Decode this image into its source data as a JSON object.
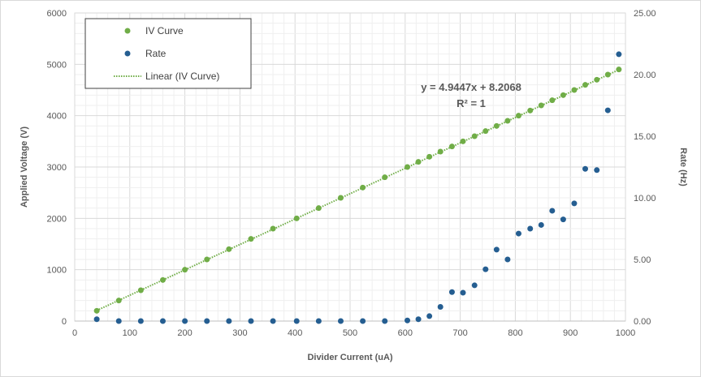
{
  "chart_data": {
    "type": "scatter",
    "title": "",
    "xlabel": "Divider Current (uA)",
    "ylabel_left": "Applied Voltage (V)",
    "ylabel_right": "Rate (Hz)",
    "xlim": [
      0,
      1000
    ],
    "ylim_left": [
      0,
      6000
    ],
    "ylim_right": [
      0,
      25
    ],
    "x_ticks": [
      "0",
      "100",
      "200",
      "300",
      "400",
      "500",
      "600",
      "700",
      "800",
      "900",
      "1000"
    ],
    "y_left_ticks": [
      "0",
      "1000",
      "2000",
      "3000",
      "4000",
      "5000",
      "6000"
    ],
    "y_right_ticks": [
      "0.00",
      "5.00",
      "10.00",
      "15.00",
      "20.00",
      "25.00"
    ],
    "grid": true,
    "legend_position": "top-left",
    "series": [
      {
        "name": "IV Curve",
        "axis": "left",
        "color": "#70ad47",
        "points": [
          [
            40,
            200
          ],
          [
            80,
            400
          ],
          [
            120,
            600
          ],
          [
            160,
            800
          ],
          [
            200,
            1000
          ],
          [
            240,
            1200
          ],
          [
            280,
            1400
          ],
          [
            320,
            1600
          ],
          [
            360,
            1800
          ],
          [
            403,
            2000
          ],
          [
            443,
            2200
          ],
          [
            483,
            2400
          ],
          [
            523,
            2600
          ],
          [
            563,
            2800
          ],
          [
            604,
            3000
          ],
          [
            624,
            3100
          ],
          [
            644,
            3200
          ],
          [
            664,
            3300
          ],
          [
            685,
            3400
          ],
          [
            705,
            3500
          ],
          [
            726,
            3600
          ],
          [
            746,
            3700
          ],
          [
            766,
            3800
          ],
          [
            786,
            3900
          ],
          [
            806,
            4000
          ],
          [
            827,
            4100
          ],
          [
            847,
            4200
          ],
          [
            867,
            4300
          ],
          [
            887,
            4400
          ],
          [
            907,
            4500
          ],
          [
            927,
            4600
          ],
          [
            948,
            4700
          ],
          [
            968,
            4800
          ],
          [
            988,
            4900
          ]
        ]
      },
      {
        "name": "Rate",
        "axis": "right",
        "color": "#255e91",
        "points": [
          [
            40,
            0.15
          ],
          [
            80,
            0
          ],
          [
            120,
            0
          ],
          [
            160,
            0
          ],
          [
            200,
            0
          ],
          [
            240,
            0
          ],
          [
            280,
            0
          ],
          [
            320,
            0
          ],
          [
            360,
            0
          ],
          [
            403,
            0
          ],
          [
            443,
            0
          ],
          [
            483,
            0
          ],
          [
            523,
            0
          ],
          [
            563,
            0
          ],
          [
            604,
            0.05
          ],
          [
            624,
            0.15
          ],
          [
            644,
            0.4
          ],
          [
            664,
            1.15
          ],
          [
            685,
            2.35
          ],
          [
            705,
            2.3
          ],
          [
            726,
            2.9
          ],
          [
            746,
            4.2
          ],
          [
            766,
            5.8
          ],
          [
            786,
            5.0
          ],
          [
            806,
            7.1
          ],
          [
            827,
            7.5
          ],
          [
            847,
            7.8
          ],
          [
            867,
            8.95
          ],
          [
            887,
            8.25
          ],
          [
            907,
            9.55
          ],
          [
            927,
            12.35
          ],
          [
            948,
            12.25
          ],
          [
            968,
            17.1
          ],
          [
            988,
            21.65
          ]
        ]
      },
      {
        "name": "Linear (IV Curve)",
        "type": "trendline",
        "axis": "left",
        "color": "#70ad47",
        "slope": 4.9447,
        "intercept": 8.2068,
        "x_range": [
          40,
          988
        ]
      }
    ],
    "annotations": {
      "equation": "y = 4.9447x + 8.2068",
      "r_squared": "R² = 1"
    }
  }
}
